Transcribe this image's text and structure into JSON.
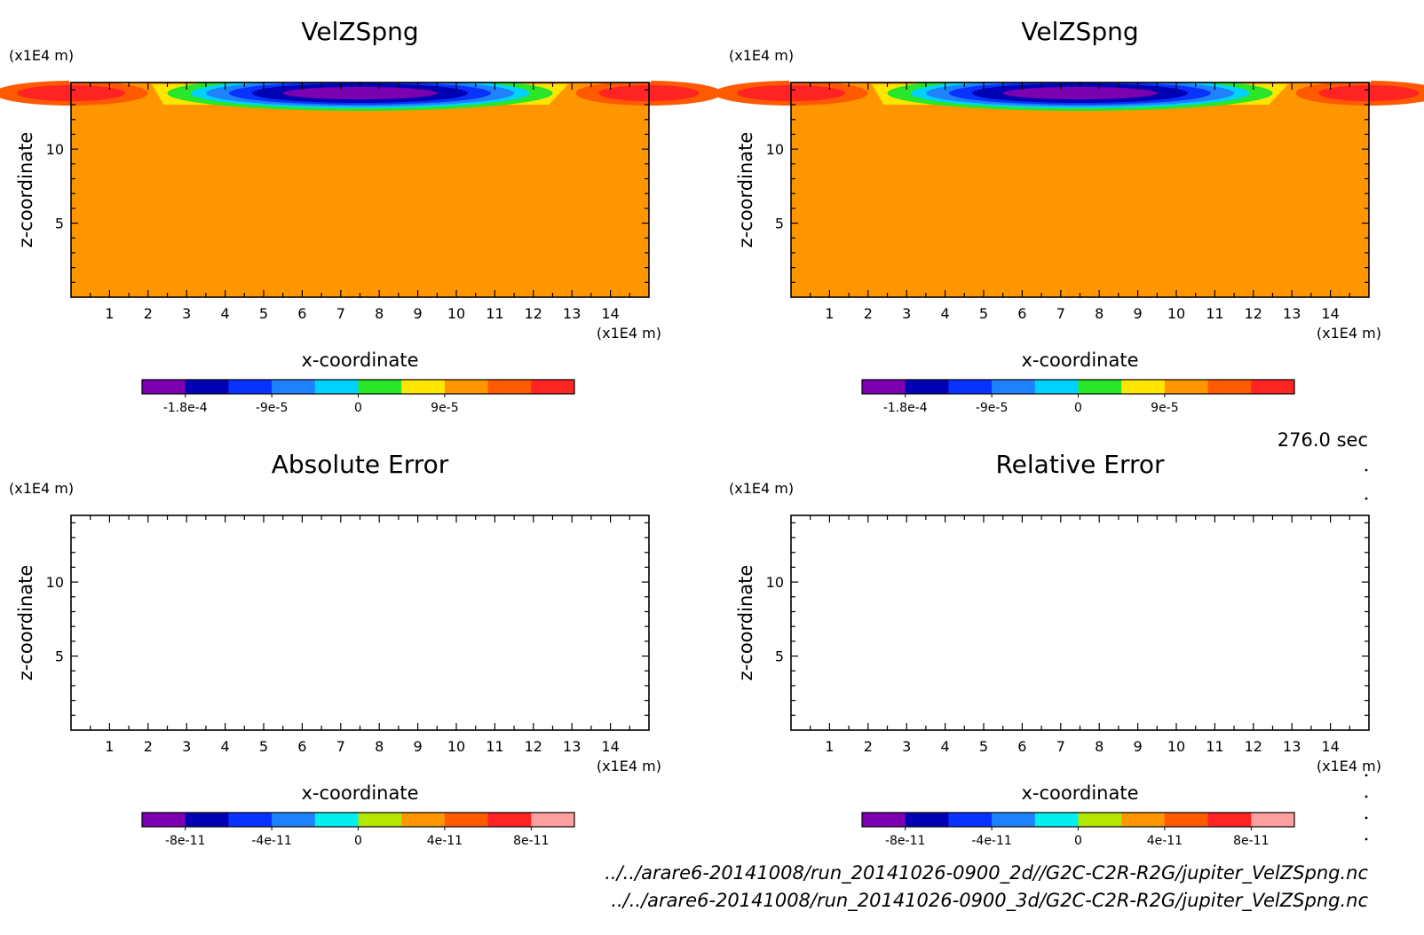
{
  "time_label": "276.0 sec",
  "footer": {
    "path1": "../../arare6-20141008/run_20141026-0900_2d//G2C-C2R-R2G/jupiter_VelZSpng.nc",
    "path2": "../../arare6-20141008/run_20141026-0900_3d/G2C-C2R-R2G/jupiter_VelZSpng.nc"
  },
  "chart_data": [
    {
      "type": "heatmap",
      "title": "VelZSpng",
      "xlabel": "x-coordinate",
      "ylabel": "z-coordinate",
      "x_unit": "(x1E4 m)",
      "y_unit": "(x1E4 m)",
      "xlim": [
        0,
        15
      ],
      "ylim": [
        0,
        14.5
      ],
      "xticks": [
        "1",
        "2",
        "3",
        "4",
        "5",
        "6",
        "7",
        "8",
        "9",
        "10",
        "11",
        "12",
        "13",
        "14"
      ],
      "yticks": [
        "5",
        "10"
      ],
      "colorbar": {
        "colors": [
          "#7b00b0",
          "#0000b4",
          "#0a32ff",
          "#1e82ff",
          "#00d2ff",
          "#28e628",
          "#ffe600",
          "#ff9600",
          "#ff5a00",
          "#ff2323"
        ],
        "tick_labels": [
          "-1.8e-4",
          "-9e-5",
          "0",
          "9e-5"
        ]
      }
    },
    {
      "type": "heatmap",
      "title": "VelZSpng",
      "xlabel": "x-coordinate",
      "ylabel": "z-coordinate",
      "x_unit": "(x1E4 m)",
      "y_unit": "(x1E4 m)",
      "xlim": [
        0,
        15
      ],
      "ylim": [
        0,
        14.5
      ],
      "xticks": [
        "1",
        "2",
        "3",
        "4",
        "5",
        "6",
        "7",
        "8",
        "9",
        "10",
        "11",
        "12",
        "13",
        "14"
      ],
      "yticks": [
        "5",
        "10"
      ],
      "colorbar": {
        "colors": [
          "#7b00b0",
          "#0000b4",
          "#0a32ff",
          "#1e82ff",
          "#00d2ff",
          "#28e628",
          "#ffe600",
          "#ff9600",
          "#ff5a00",
          "#ff2323"
        ],
        "tick_labels": [
          "-1.8e-4",
          "-9e-5",
          "0",
          "9e-5"
        ]
      }
    },
    {
      "type": "heatmap",
      "title": "Absolute Error",
      "xlabel": "x-coordinate",
      "ylabel": "z-coordinate",
      "x_unit": "(x1E4 m)",
      "y_unit": "(x1E4 m)",
      "xlim": [
        0,
        15
      ],
      "ylim": [
        0,
        14.5
      ],
      "xticks": [
        "1",
        "2",
        "3",
        "4",
        "5",
        "6",
        "7",
        "8",
        "9",
        "10",
        "11",
        "12",
        "13",
        "14"
      ],
      "yticks": [
        "5",
        "10"
      ],
      "colorbar": {
        "colors": [
          "#7b00b0",
          "#0000b4",
          "#0a32ff",
          "#1e82ff",
          "#00f0f0",
          "#b4e600",
          "#ff9600",
          "#ff5a00",
          "#ff2323",
          "#ffa0a0"
        ],
        "tick_labels": [
          "-8e-11",
          "-4e-11",
          "0",
          "4e-11",
          "8e-11"
        ]
      }
    },
    {
      "type": "heatmap",
      "title": "Relative Error",
      "xlabel": "x-coordinate",
      "ylabel": "z-coordinate",
      "x_unit": "(x1E4 m)",
      "y_unit": "(x1E4 m)",
      "xlim": [
        0,
        15
      ],
      "ylim": [
        0,
        14.5
      ],
      "xticks": [
        "1",
        "2",
        "3",
        "4",
        "5",
        "6",
        "7",
        "8",
        "9",
        "10",
        "11",
        "12",
        "13",
        "14"
      ],
      "yticks": [
        "5",
        "10"
      ],
      "colorbar": {
        "colors": [
          "#7b00b0",
          "#0000b4",
          "#0a32ff",
          "#1e82ff",
          "#00f0f0",
          "#b4e600",
          "#ff9600",
          "#ff5a00",
          "#ff2323",
          "#ffa0a0"
        ],
        "tick_labels": [
          "-8e-11",
          "-4e-11",
          "0",
          "4e-11",
          "8e-11"
        ]
      }
    }
  ]
}
